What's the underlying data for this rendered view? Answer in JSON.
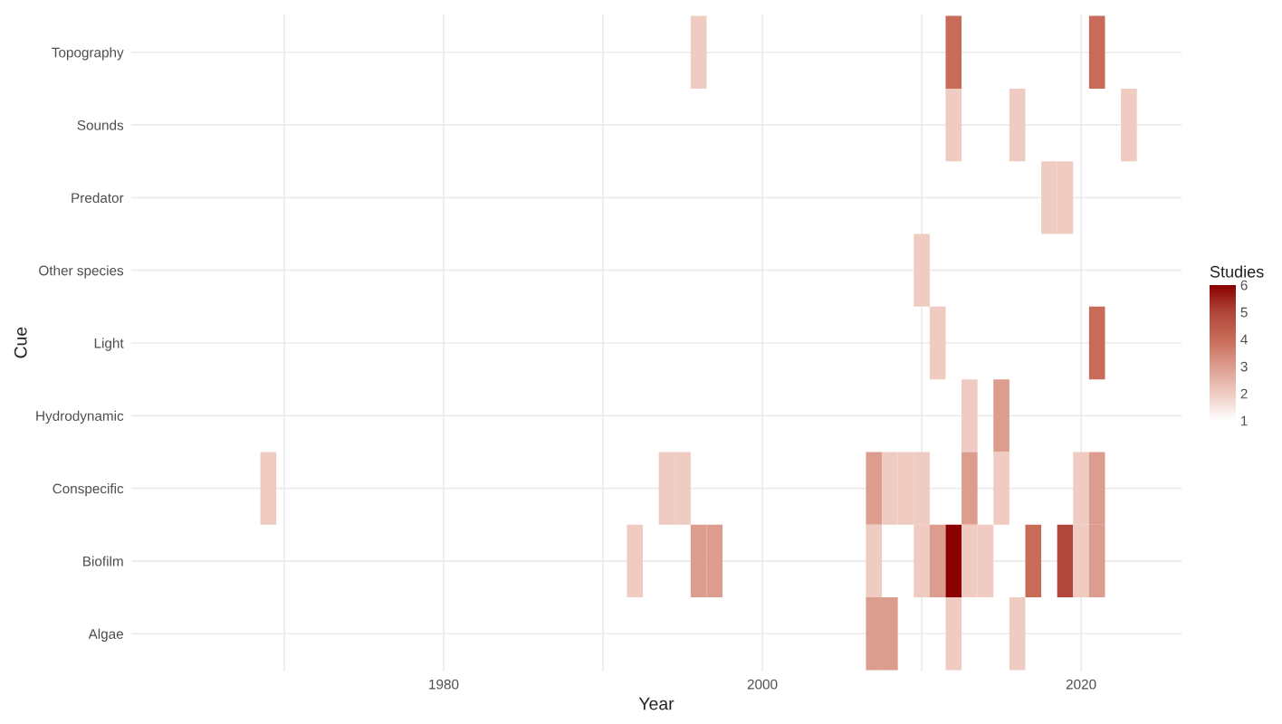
{
  "chart_data": {
    "type": "heatmap",
    "xlabel": "Year",
    "ylabel": "Cue",
    "clabel": "Studies",
    "x": [
      1969,
      1970,
      1971,
      1972,
      1973,
      1974,
      1975,
      1976,
      1977,
      1978,
      1979,
      1980,
      1981,
      1982,
      1983,
      1984,
      1985,
      1986,
      1987,
      1988,
      1989,
      1990,
      1991,
      1992,
      1993,
      1994,
      1995,
      1996,
      1997,
      1998,
      1999,
      2000,
      2001,
      2002,
      2003,
      2004,
      2005,
      2006,
      2007,
      2008,
      2009,
      2010,
      2011,
      2012,
      2013,
      2014,
      2015,
      2016,
      2017,
      2018,
      2019,
      2020,
      2021,
      2022,
      2023
    ],
    "y_categories": [
      "Topography",
      "Sounds",
      "Predator",
      "Other species",
      "Light",
      "Hydrodynamic",
      "Conspecific",
      "Biofilm",
      "Algae"
    ],
    "cells": [
      [
        null,
        null,
        null,
        null,
        null,
        null,
        null,
        null,
        null,
        null,
        null,
        null,
        null,
        null,
        null,
        null,
        null,
        null,
        null,
        null,
        null,
        null,
        null,
        null,
        null,
        null,
        null,
        2,
        null,
        null,
        null,
        null,
        null,
        null,
        null,
        null,
        null,
        null,
        null,
        null,
        null,
        null,
        null,
        4,
        null,
        null,
        null,
        null,
        null,
        null,
        null,
        null,
        4,
        null,
        null
      ],
      [
        null,
        null,
        null,
        null,
        null,
        null,
        null,
        null,
        null,
        null,
        null,
        null,
        null,
        null,
        null,
        null,
        null,
        null,
        null,
        null,
        null,
        null,
        null,
        null,
        null,
        null,
        null,
        null,
        null,
        null,
        null,
        null,
        null,
        null,
        null,
        null,
        null,
        null,
        null,
        null,
        null,
        null,
        null,
        2,
        null,
        null,
        null,
        2,
        null,
        null,
        null,
        null,
        null,
        null,
        2
      ],
      [
        null,
        null,
        null,
        null,
        null,
        null,
        null,
        null,
        null,
        null,
        null,
        null,
        null,
        null,
        null,
        null,
        null,
        null,
        null,
        null,
        null,
        null,
        null,
        null,
        null,
        null,
        null,
        null,
        null,
        null,
        null,
        null,
        null,
        null,
        null,
        null,
        null,
        null,
        null,
        null,
        null,
        null,
        null,
        null,
        null,
        null,
        null,
        null,
        null,
        2,
        2,
        null,
        null,
        null,
        null
      ],
      [
        null,
        null,
        null,
        null,
        null,
        null,
        null,
        null,
        null,
        null,
        null,
        null,
        null,
        null,
        null,
        null,
        null,
        null,
        null,
        null,
        null,
        null,
        null,
        null,
        null,
        null,
        null,
        null,
        null,
        null,
        null,
        null,
        null,
        null,
        null,
        null,
        null,
        null,
        null,
        null,
        null,
        2,
        null,
        null,
        null,
        null,
        null,
        null,
        null,
        null,
        null,
        null,
        null,
        null,
        null
      ],
      [
        null,
        null,
        null,
        null,
        null,
        null,
        null,
        null,
        null,
        null,
        null,
        null,
        null,
        null,
        null,
        null,
        null,
        null,
        null,
        null,
        null,
        null,
        null,
        null,
        null,
        null,
        null,
        null,
        null,
        null,
        null,
        null,
        null,
        null,
        null,
        null,
        null,
        null,
        null,
        null,
        null,
        null,
        2,
        null,
        null,
        null,
        null,
        null,
        null,
        null,
        null,
        null,
        4,
        null,
        null
      ],
      [
        null,
        null,
        null,
        null,
        null,
        null,
        null,
        null,
        null,
        null,
        null,
        null,
        null,
        null,
        null,
        null,
        null,
        null,
        null,
        null,
        null,
        null,
        null,
        null,
        null,
        null,
        null,
        null,
        null,
        null,
        null,
        null,
        null,
        null,
        null,
        null,
        null,
        null,
        null,
        null,
        null,
        null,
        null,
        null,
        2,
        null,
        3,
        null,
        null,
        null,
        null,
        null,
        null,
        null,
        null
      ],
      [
        2,
        null,
        null,
        null,
        null,
        null,
        null,
        null,
        null,
        null,
        null,
        null,
        null,
        null,
        null,
        null,
        null,
        null,
        null,
        null,
        null,
        null,
        null,
        null,
        null,
        2,
        2,
        null,
        null,
        null,
        null,
        null,
        null,
        null,
        null,
        null,
        null,
        null,
        3,
        2,
        2,
        2,
        null,
        null,
        3,
        null,
        2,
        null,
        null,
        null,
        null,
        2,
        3,
        null,
        null
      ],
      [
        null,
        null,
        null,
        null,
        null,
        null,
        null,
        null,
        null,
        null,
        null,
        null,
        null,
        null,
        null,
        null,
        null,
        null,
        null,
        null,
        null,
        null,
        null,
        2,
        null,
        null,
        null,
        3,
        3,
        null,
        null,
        null,
        null,
        null,
        null,
        null,
        null,
        null,
        2,
        null,
        null,
        2,
        3,
        6,
        2,
        2,
        null,
        null,
        4,
        null,
        5,
        2,
        3,
        null,
        null
      ],
      [
        null,
        null,
        null,
        null,
        null,
        null,
        null,
        null,
        null,
        null,
        null,
        null,
        null,
        null,
        null,
        null,
        null,
        null,
        null,
        null,
        null,
        null,
        null,
        null,
        null,
        null,
        null,
        null,
        null,
        null,
        null,
        null,
        null,
        null,
        null,
        null,
        null,
        null,
        3,
        3,
        null,
        null,
        null,
        2,
        null,
        null,
        null,
        2,
        null,
        null,
        null,
        null,
        null,
        null,
        null
      ]
    ],
    "xlim": [
      1960.4,
      2026.3
    ],
    "xticks": [
      {
        "value": 1970,
        "label": null
      },
      1980,
      {
        "value": 1990,
        "label": null
      },
      2000,
      {
        "value": 2010,
        "label": null
      },
      2020
    ],
    "clim": [
      1,
      6
    ],
    "cticks": [
      1,
      2,
      3,
      4,
      5,
      6
    ],
    "grid": true
  }
}
